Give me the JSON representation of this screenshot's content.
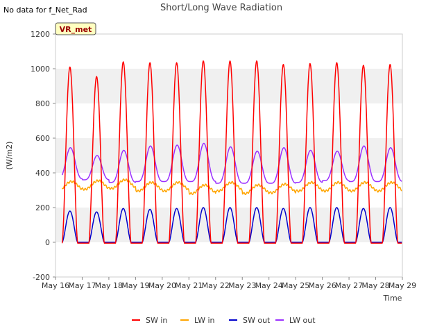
{
  "header": {
    "note": "No data for f_Net_Rad",
    "badge": "VR_met"
  },
  "colors": {
    "sw_in": "#ff0000",
    "lw_in": "#ffa500",
    "sw_out": "#0000cc",
    "lw_out": "#9b30ff",
    "band": "#f0f0f0",
    "badge_bg": "#ffffc0",
    "badge_text": "#990000"
  },
  "chart_data": {
    "type": "line",
    "title": "Short/Long Wave Radiation",
    "xlabel": "Time",
    "ylabel": "(W/m2)",
    "ylim": [
      -200,
      1200
    ],
    "yticks": [
      -200,
      0,
      200,
      400,
      600,
      800,
      1000,
      1200
    ],
    "xlim": [
      16,
      29
    ],
    "xticks": [
      16,
      17,
      18,
      19,
      20,
      21,
      22,
      23,
      24,
      25,
      26,
      27,
      28,
      29
    ],
    "xticklabels": [
      "May 16",
      "May 17",
      "May 18",
      "May 19",
      "May 20",
      "May 21",
      "May 22",
      "May 23",
      "May 24",
      "May 25",
      "May 26",
      "May 27",
      "May 28",
      "May 29"
    ],
    "grid": "horizontal bands",
    "legend_position": "bottom",
    "days": [
      16,
      17,
      18,
      19,
      20,
      21,
      22,
      23,
      24,
      25,
      26,
      27,
      28
    ],
    "solar_noon_fraction": 0.54,
    "series": [
      {
        "name": "SW in",
        "key": "sw_in",
        "daily_peak": [
          1010,
          955,
          1040,
          1035,
          1035,
          1045,
          1045,
          1045,
          1025,
          1030,
          1035,
          1020,
          1025
        ],
        "night": -5
      },
      {
        "name": "LW in",
        "key": "lw_in",
        "daily_mean": [
          325,
          330,
          335,
          320,
          320,
          305,
          320,
          305,
          310,
          320,
          320,
          320,
          320
        ],
        "daily_amp": 25,
        "start": 320,
        "end": 350
      },
      {
        "name": "SW out",
        "key": "sw_out",
        "daily_peak": [
          180,
          175,
          195,
          190,
          195,
          200,
          200,
          200,
          195,
          200,
          200,
          195,
          200
        ],
        "night": 0
      },
      {
        "name": "LW out",
        "key": "lw_out",
        "daily_peak": [
          545,
          500,
          530,
          555,
          560,
          570,
          550,
          525,
          545,
          530,
          525,
          555,
          545
        ],
        "daily_min": [
          365,
          360,
          345,
          350,
          350,
          350,
          340,
          340,
          340,
          345,
          355,
          350,
          350
        ],
        "start": 370,
        "end": 540
      }
    ]
  }
}
